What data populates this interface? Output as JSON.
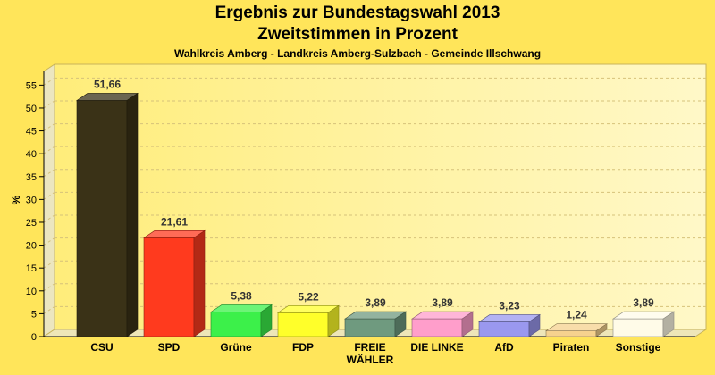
{
  "title": "Ergebnis zur Bundestagswahl 2013",
  "subtitle": "Zweitstimmen in Prozent",
  "caption": "Wahlkreis Amberg - Landkreis Amberg-Sulzbach - Gemeinde Illschwang",
  "chart_data": {
    "type": "bar",
    "ylabel": "%",
    "xlabel": "",
    "ylim": [
      0,
      58
    ],
    "yticks": [
      0,
      5,
      10,
      15,
      20,
      25,
      30,
      35,
      40,
      45,
      50,
      55
    ],
    "grid": true,
    "categories": [
      "CSU",
      "SPD",
      "Grüne",
      "FDP",
      "FREIE WÄHLER",
      "DIE LINKE",
      "AfD",
      "Piraten",
      "Sonstige"
    ],
    "category_lines": [
      [
        "CSU"
      ],
      [
        "SPD"
      ],
      [
        "Grüne"
      ],
      [
        "FDP"
      ],
      [
        "FREIE",
        "WÄHLER"
      ],
      [
        "DIE LINKE"
      ],
      [
        "AfD"
      ],
      [
        "Piraten"
      ],
      [
        "Sonstige"
      ]
    ],
    "values": [
      51.66,
      21.61,
      5.38,
      5.22,
      3.89,
      3.89,
      3.23,
      1.24,
      3.89
    ],
    "value_labels": [
      "51,66",
      "21,61",
      "5,38",
      "5,22",
      "3,89",
      "3,89",
      "3,23",
      "1,24",
      "3,89"
    ],
    "colors": [
      "#3a3217",
      "#ff3a1e",
      "#3cf04a",
      "#ffff2a",
      "#6f9a7f",
      "#ff9ecb",
      "#9a98ef",
      "#f6d28e",
      "#fffbe8"
    ]
  }
}
